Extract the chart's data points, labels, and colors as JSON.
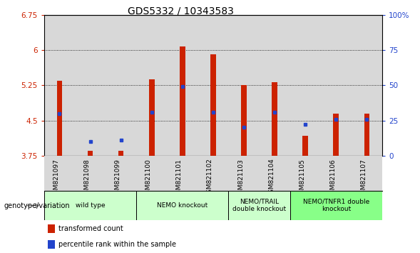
{
  "title": "GDS5332 / 10343583",
  "samples": [
    "GSM821097",
    "GSM821098",
    "GSM821099",
    "GSM821100",
    "GSM821101",
    "GSM821102",
    "GSM821103",
    "GSM821104",
    "GSM821105",
    "GSM821106",
    "GSM821107"
  ],
  "red_values": [
    5.35,
    3.85,
    3.85,
    5.38,
    6.08,
    5.92,
    5.25,
    5.32,
    4.18,
    4.65,
    4.65
  ],
  "blue_values": [
    4.65,
    4.05,
    4.08,
    4.68,
    5.22,
    4.68,
    4.35,
    4.68,
    4.42,
    4.52,
    4.52
  ],
  "ymin": 3.75,
  "ymax": 6.75,
  "yticks": [
    3.75,
    4.5,
    5.25,
    6.0,
    6.75
  ],
  "ytick_labels": [
    "3.75",
    "4.5",
    "5.25",
    "6",
    "6.75"
  ],
  "right_yticks": [
    0,
    25,
    50,
    75,
    100
  ],
  "right_ytick_labels": [
    "0",
    "25",
    "50",
    "75",
    "100%"
  ],
  "bar_color": "#cc2200",
  "dot_color": "#2244cc",
  "col_bg_color": "#d8d8d8",
  "plot_bg": "#ffffff",
  "groups_info": [
    {
      "label": "wild type",
      "indices": [
        0,
        1,
        2
      ],
      "color": "#ccffcc"
    },
    {
      "label": "NEMO knockout",
      "indices": [
        3,
        4,
        5
      ],
      "color": "#ccffcc"
    },
    {
      "label": "NEMO/TRAIL\ndouble knockout",
      "indices": [
        6,
        7
      ],
      "color": "#ccffcc"
    },
    {
      "label": "NEMO/TNFR1 double\nknockout",
      "indices": [
        8,
        9,
        10
      ],
      "color": "#88ff88"
    }
  ],
  "legend_red": "transformed count",
  "legend_blue": "percentile rank within the sample",
  "genotype_label": "genotype/variation",
  "title_fontsize": 10,
  "tick_fontsize": 7.5,
  "label_fontsize": 7
}
